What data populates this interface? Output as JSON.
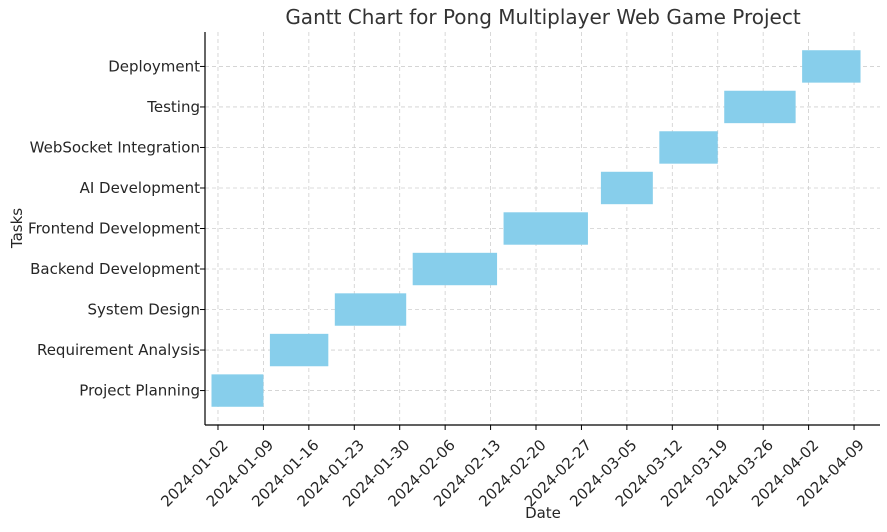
{
  "chart_data": {
    "type": "gantt",
    "title": "Gantt Chart for Pong Multiplayer Web Game Project",
    "xlabel": "Date",
    "ylabel": "Tasks",
    "bar_color": "#87CEEB",
    "grid": true,
    "xlim": [
      "2023-12-31",
      "2024-04-13"
    ],
    "x_ticks": [
      "2024-01-02",
      "2024-01-09",
      "2024-01-16",
      "2024-01-23",
      "2024-01-30",
      "2024-02-06",
      "2024-02-13",
      "2024-02-20",
      "2024-02-27",
      "2024-03-05",
      "2024-03-12",
      "2024-03-19",
      "2024-03-26",
      "2024-04-02",
      "2024-04-09"
    ],
    "tasks": [
      {
        "name": "Project Planning",
        "start": "2024-01-01",
        "end": "2024-01-09"
      },
      {
        "name": "Requirement Analysis",
        "start": "2024-01-10",
        "end": "2024-01-19"
      },
      {
        "name": "System Design",
        "start": "2024-01-20",
        "end": "2024-01-31"
      },
      {
        "name": "Backend Development",
        "start": "2024-02-01",
        "end": "2024-02-14"
      },
      {
        "name": "Frontend Development",
        "start": "2024-02-15",
        "end": "2024-02-28"
      },
      {
        "name": "AI Development",
        "start": "2024-03-01",
        "end": "2024-03-09"
      },
      {
        "name": "WebSocket Integration",
        "start": "2024-03-10",
        "end": "2024-03-19"
      },
      {
        "name": "Testing",
        "start": "2024-03-20",
        "end": "2024-03-31"
      },
      {
        "name": "Deployment",
        "start": "2024-04-01",
        "end": "2024-04-10"
      }
    ]
  }
}
